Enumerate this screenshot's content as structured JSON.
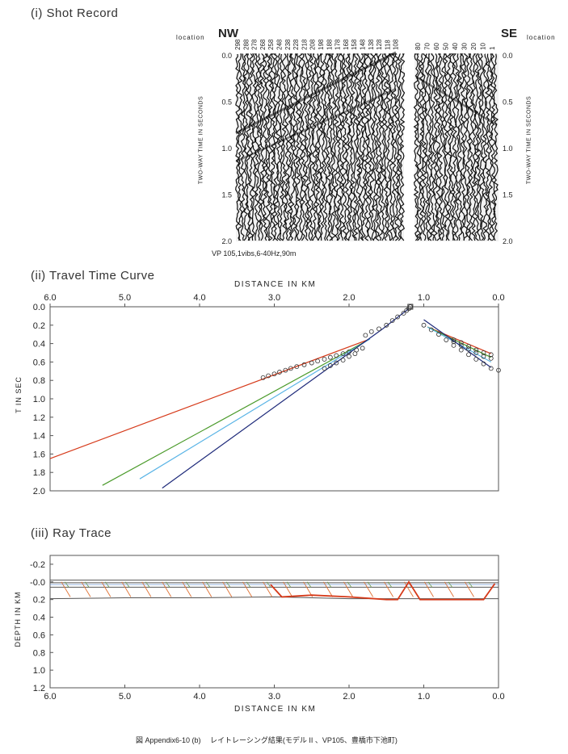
{
  "shot_record": {
    "title": "(i) Shot Record",
    "location_label": "location",
    "nw": "NW",
    "se": "SE",
    "left_traces": [
      "298",
      "288",
      "278",
      "268",
      "258",
      "248",
      "238",
      "228",
      "218",
      "208",
      "198",
      "188",
      "178",
      "168",
      "158",
      "148",
      "138",
      "128",
      "118",
      "108"
    ],
    "right_traces": [
      "80",
      "70",
      "60",
      "50",
      "40",
      "30",
      "20",
      "10",
      "1"
    ],
    "time_ticks": [
      "0.0",
      "0.5",
      "1.0",
      "1.5",
      "2.0"
    ],
    "y_axis_label": "TWO-WAY TIME IN SECONDS",
    "source_info": "VP 105,1vibs,6-40Hz,90m"
  },
  "chart_data": [
    {
      "type": "line",
      "title": "(ii) Travel Time Curve",
      "xlabel": "DISTANCE IN KM",
      "ylabel": "T IN SEC",
      "xlim": [
        6.0,
        0.0
      ],
      "ylim": [
        2.0,
        0.0
      ],
      "x_ticks": [
        "6.0",
        "5.0",
        "4.0",
        "3.0",
        "2.0",
        "1.0",
        "0.0"
      ],
      "y_ticks": [
        "0.0",
        "0.2",
        "0.4",
        "0.6",
        "0.8",
        "1.0",
        "1.2",
        "1.4",
        "1.6",
        "1.8",
        "2.0"
      ],
      "colors": {
        "red": "#d63a1a",
        "green": "#4a9a2a",
        "cyan": "#5ab4e6",
        "navy": "#1e2a7a",
        "obs": "#333333"
      },
      "series": [
        {
          "color": "red",
          "segments": [
            [
              [
                6.0,
                1.65
              ],
              [
                1.72,
                0.35
              ]
            ],
            [
              [
                0.95,
                0.22
              ],
              [
                0.1,
                0.51
              ]
            ]
          ]
        },
        {
          "color": "green",
          "segments": [
            [
              [
                5.3,
                1.94
              ],
              [
                1.72,
                0.35
              ]
            ],
            [
              [
                0.95,
                0.22
              ],
              [
                0.1,
                0.55
              ]
            ]
          ]
        },
        {
          "color": "cyan",
          "segments": [
            [
              [
                4.8,
                1.87
              ],
              [
                1.72,
                0.35
              ]
            ],
            [
              [
                0.95,
                0.22
              ],
              [
                0.1,
                0.6
              ]
            ]
          ]
        },
        {
          "color": "navy",
          "segments": [
            [
              [
                4.5,
                1.97
              ],
              [
                1.55,
                0.24
              ],
              [
                1.2,
                0.02
              ]
            ],
            [
              [
                1.0,
                0.14
              ],
              [
                0.1,
                0.66
              ]
            ]
          ]
        }
      ],
      "observed": [
        [
          3.15,
          0.77
        ],
        [
          3.08,
          0.75
        ],
        [
          3.0,
          0.73
        ],
        [
          2.93,
          0.71
        ],
        [
          2.85,
          0.69
        ],
        [
          2.78,
          0.67
        ],
        [
          2.7,
          0.65
        ],
        [
          2.6,
          0.63
        ],
        [
          2.5,
          0.61
        ],
        [
          2.42,
          0.59
        ],
        [
          2.33,
          0.57
        ],
        [
          2.25,
          0.55
        ],
        [
          2.17,
          0.53
        ],
        [
          2.08,
          0.51
        ],
        [
          2.0,
          0.49
        ],
        [
          1.9,
          0.47
        ],
        [
          1.82,
          0.45
        ],
        [
          2.33,
          0.67
        ],
        [
          2.25,
          0.64
        ],
        [
          2.17,
          0.61
        ],
        [
          2.08,
          0.58
        ],
        [
          2.0,
          0.54
        ],
        [
          1.92,
          0.51
        ],
        [
          1.78,
          0.31
        ],
        [
          1.7,
          0.27
        ],
        [
          1.6,
          0.24
        ],
        [
          1.5,
          0.2
        ],
        [
          1.42,
          0.15
        ],
        [
          1.35,
          0.11
        ],
        [
          1.27,
          0.07
        ],
        [
          1.23,
          0.04
        ],
        [
          1.2,
          0.02
        ],
        [
          1.18,
          0.0
        ],
        [
          1.0,
          0.2
        ],
        [
          0.9,
          0.25
        ],
        [
          0.8,
          0.3
        ],
        [
          0.7,
          0.36
        ],
        [
          0.6,
          0.42
        ],
        [
          0.5,
          0.47
        ],
        [
          0.4,
          0.52
        ],
        [
          0.3,
          0.57
        ],
        [
          0.2,
          0.62
        ],
        [
          0.1,
          0.67
        ],
        [
          0.0,
          0.69
        ],
        [
          0.6,
          0.36
        ],
        [
          0.5,
          0.39
        ],
        [
          0.4,
          0.43
        ],
        [
          0.3,
          0.47
        ],
        [
          0.2,
          0.5
        ],
        [
          0.1,
          0.52
        ],
        [
          0.6,
          0.38
        ],
        [
          0.5,
          0.42
        ],
        [
          0.4,
          0.46
        ],
        [
          0.3,
          0.5
        ],
        [
          0.2,
          0.54
        ],
        [
          0.1,
          0.56
        ]
      ]
    },
    {
      "type": "line",
      "title": "(iii) Ray Trace",
      "xlabel": "DISTANCE IN KM",
      "ylabel": "DEPTH IN KM",
      "xlim": [
        6.0,
        0.0
      ],
      "ylim": [
        1.2,
        -0.3
      ],
      "x_ticks": [
        "6.0",
        "5.0",
        "4.0",
        "3.0",
        "2.0",
        "1.0",
        "0.0"
      ],
      "y_ticks": [
        "-0.2",
        "-0.0",
        "0.2",
        "0.4",
        "0.6",
        "0.8",
        "1.0",
        "1.2"
      ],
      "colors": {
        "interface": "#555555",
        "ray": "#e07030",
        "bottom": "#d63a1a",
        "green": "#6aa040",
        "blue": "#5a8ad0"
      },
      "surface": [
        [
          6.0,
          -0.02
        ],
        [
          0.0,
          -0.02
        ]
      ],
      "interfaces": [
        [
          [
            6.0,
            0.01
          ],
          [
            0.0,
            0.01
          ]
        ],
        [
          [
            6.0,
            0.06
          ],
          [
            0.0,
            0.06
          ]
        ],
        [
          [
            6.0,
            0.19
          ],
          [
            5.0,
            0.18
          ],
          [
            4.0,
            0.18
          ],
          [
            3.0,
            0.17
          ],
          [
            2.0,
            0.19
          ],
          [
            1.0,
            0.19
          ],
          [
            0.0,
            0.19
          ]
        ]
      ],
      "bottom_path": [
        [
          3.05,
          0.03
        ],
        [
          2.9,
          0.17
        ],
        [
          2.5,
          0.15
        ],
        [
          2.0,
          0.17
        ],
        [
          1.5,
          0.2
        ],
        [
          1.35,
          0.2
        ],
        [
          1.2,
          0.0
        ],
        [
          1.05,
          0.2
        ],
        [
          0.2,
          0.2
        ],
        [
          0.05,
          0.02
        ]
      ]
    }
  ],
  "caption": "図 Appendix6-10 (b)　 レイトレーシング結果(モデル II 、VP105、豊橋市下池町)"
}
